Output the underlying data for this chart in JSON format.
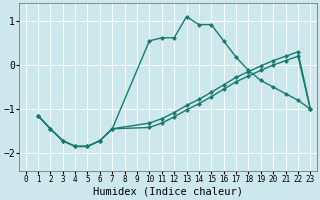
{
  "xlabel": "Humidex (Indice chaleur)",
  "background_color": "#cce8ec",
  "grid_color": "#ffffff",
  "line_color": "#1a7a6e",
  "xlim": [
    -0.5,
    23.5
  ],
  "ylim": [
    -2.4,
    1.4
  ],
  "xticks": [
    0,
    1,
    2,
    3,
    4,
    5,
    6,
    7,
    8,
    9,
    10,
    11,
    12,
    13,
    14,
    15,
    16,
    17,
    18,
    19,
    20,
    21,
    22,
    23
  ],
  "yticks": [
    -2,
    -1,
    0,
    1
  ],
  "curve1_x": [
    1,
    2,
    3,
    4,
    5,
    6,
    7,
    10,
    11,
    12,
    13,
    14,
    15,
    16,
    17,
    18,
    19,
    20,
    21,
    22,
    23
  ],
  "curve1_y": [
    -1.15,
    -1.45,
    -1.72,
    -1.85,
    -1.85,
    -1.72,
    -1.45,
    0.55,
    0.62,
    0.62,
    1.1,
    0.92,
    0.92,
    0.55,
    0.18,
    -0.12,
    -0.35,
    -0.5,
    -0.65,
    -0.8,
    -1.0
  ],
  "curve2_x": [
    1,
    2,
    3,
    4,
    5,
    6,
    7,
    10,
    11,
    12,
    13,
    14,
    15,
    16,
    17,
    18,
    19,
    20,
    21,
    22,
    23
  ],
  "curve2_y": [
    -1.15,
    -1.45,
    -1.72,
    -1.85,
    -1.85,
    -1.72,
    -1.45,
    -1.32,
    -1.22,
    -1.08,
    -0.92,
    -0.78,
    -0.62,
    -0.45,
    -0.28,
    -0.15,
    -0.02,
    0.1,
    0.2,
    0.3,
    -1.0
  ],
  "curve3_x": [
    1,
    2,
    3,
    4,
    5,
    6,
    7,
    10,
    11,
    12,
    13,
    14,
    15,
    16,
    17,
    18,
    19,
    20,
    21,
    22,
    23
  ],
  "curve3_y": [
    -1.15,
    -1.45,
    -1.72,
    -1.85,
    -1.85,
    -1.72,
    -1.45,
    -1.42,
    -1.32,
    -1.18,
    -1.02,
    -0.88,
    -0.72,
    -0.55,
    -0.38,
    -0.25,
    -0.12,
    0.0,
    0.1,
    0.2,
    -1.0
  ],
  "markersize": 2.5,
  "linewidth": 1.0,
  "xlabel_fontsize": 7.5,
  "xtick_fontsize": 5.5,
  "ytick_fontsize": 7
}
